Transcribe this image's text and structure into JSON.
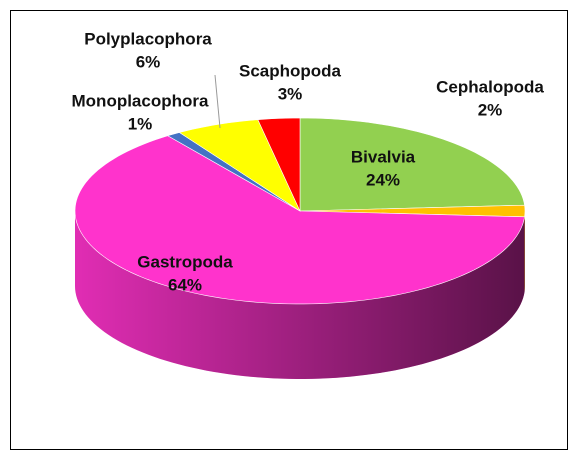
{
  "chart_data": {
    "type": "pie",
    "categories": [
      "Bivalvia",
      "Cephalopoda",
      "Gastropoda",
      "Monoplacophora",
      "Polyplacophora",
      "Scaphopoda"
    ],
    "values": [
      24,
      2,
      64,
      1,
      6,
      3
    ],
    "value_labels": [
      "24%",
      "2%",
      "64%",
      "1%",
      "6%",
      "3%"
    ],
    "colors": [
      "#92d050",
      "#ffc000",
      "#ff33cc",
      "#4472c4",
      "#ffff00",
      "#ff0000"
    ]
  }
}
